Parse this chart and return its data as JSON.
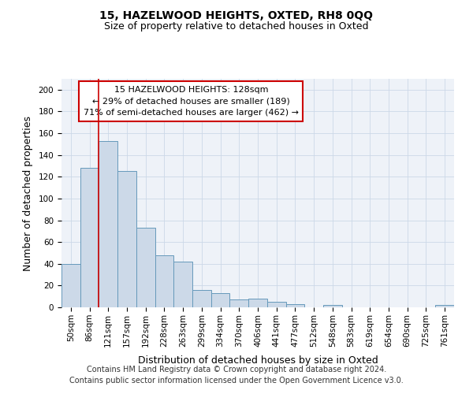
{
  "title": "15, HAZELWOOD HEIGHTS, OXTED, RH8 0QQ",
  "subtitle": "Size of property relative to detached houses in Oxted",
  "xlabel": "Distribution of detached houses by size in Oxted",
  "ylabel": "Number of detached properties",
  "categories": [
    "50sqm",
    "86sqm",
    "121sqm",
    "157sqm",
    "192sqm",
    "228sqm",
    "263sqm",
    "299sqm",
    "334sqm",
    "370sqm",
    "406sqm",
    "441sqm",
    "477sqm",
    "512sqm",
    "548sqm",
    "583sqm",
    "619sqm",
    "654sqm",
    "690sqm",
    "725sqm",
    "761sqm"
  ],
  "values": [
    40,
    128,
    153,
    125,
    73,
    48,
    42,
    16,
    13,
    7,
    8,
    5,
    3,
    0,
    2,
    0,
    0,
    0,
    0,
    0,
    2
  ],
  "bar_color": "#ccd9e8",
  "bar_edge_color": "#6699bb",
  "red_line_x": 2,
  "annotation_line1": "15 HAZELWOOD HEIGHTS: 128sqm",
  "annotation_line2": "← 29% of detached houses are smaller (189)",
  "annotation_line3": "71% of semi-detached houses are larger (462) →",
  "annotation_box_color": "#ffffff",
  "annotation_box_edge_color": "#cc0000",
  "ylim": [
    0,
    210
  ],
  "yticks": [
    0,
    20,
    40,
    60,
    80,
    100,
    120,
    140,
    160,
    180,
    200
  ],
  "grid_color": "#ccd8e8",
  "bg_color": "#eef2f8",
  "footer": "Contains HM Land Registry data © Crown copyright and database right 2024.\nContains public sector information licensed under the Open Government Licence v3.0.",
  "title_fontsize": 10,
  "subtitle_fontsize": 9,
  "axis_label_fontsize": 9,
  "tick_fontsize": 7.5,
  "annotation_fontsize": 8,
  "footer_fontsize": 7
}
